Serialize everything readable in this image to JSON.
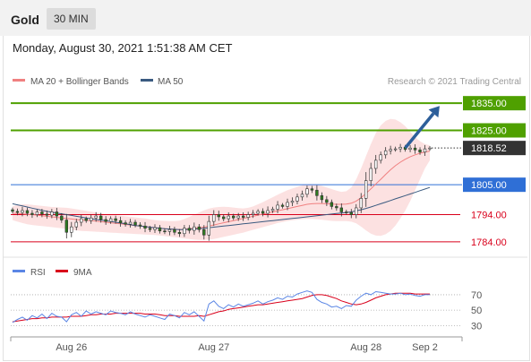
{
  "header": {
    "title": "Gold",
    "timeframe": "30 MIN"
  },
  "datetime": "Monday, August 30, 2021 1:51:38 AM CET",
  "colors": {
    "support": "#d9001b",
    "resistance": "#4fa000",
    "pivot": "#2f6fd6",
    "ma20": "#f08080",
    "ma50": "#3a5a80",
    "band": "#f9c9c9",
    "arrow": "#2d5f9a",
    "price_tag": "#333333",
    "rsi": "#5b86e5",
    "rsi_ma": "#d9001b",
    "candle_up": "#3c9a2e",
    "candle_down": "#2d7a1f"
  },
  "chart_data": [
    {
      "type": "candlestick",
      "legend": [
        {
          "name": "MA 20 + Bollinger Bands",
          "color": "#f08080"
        },
        {
          "name": "MA 50",
          "color": "#3a5a80"
        }
      ],
      "credit": "Research © 2021 Trading Central",
      "ylim": [
        1780,
        1840
      ],
      "x_ticks": [
        {
          "label": "Aug 26",
          "index": 12
        },
        {
          "label": "Aug 27",
          "index": 41
        },
        {
          "label": "Aug 28",
          "index": 72
        },
        {
          "label": "Sep 2",
          "index": 84
        }
      ],
      "levels": [
        {
          "label": "1835.00",
          "value": 1835.0,
          "kind": "resistance"
        },
        {
          "label": "1825.00",
          "value": 1825.0,
          "kind": "resistance"
        },
        {
          "label": "1805.00",
          "value": 1805.0,
          "kind": "pivot"
        },
        {
          "label": "1794.00",
          "value": 1794.0,
          "kind": "support"
        },
        {
          "label": "1784.00",
          "value": 1784.0,
          "kind": "support"
        }
      ],
      "last_price": {
        "label": "1818.52",
        "value": 1818.52
      },
      "arrow": {
        "from": [
          80,
          1818.52
        ],
        "to": [
          87,
          1834.0
        ]
      },
      "close": [
        1795.2,
        1794.8,
        1795.5,
        1794.5,
        1794.0,
        1795.0,
        1794.2,
        1793.8,
        1795.0,
        1793.5,
        1792.0,
        1787.5,
        1789.5,
        1791.2,
        1792.5,
        1791.8,
        1792.8,
        1793.5,
        1792.2,
        1791.5,
        1792.5,
        1791.8,
        1791.0,
        1790.5,
        1791.2,
        1790.2,
        1789.8,
        1789.0,
        1788.5,
        1789.2,
        1788.0,
        1787.8,
        1788.5,
        1787.5,
        1787.0,
        1789.0,
        1788.2,
        1789.5,
        1788.5,
        1786.5,
        1791.5,
        1794.0,
        1793.2,
        1792.5,
        1793.5,
        1792.8,
        1793.5,
        1793.0,
        1794.0,
        1794.5,
        1795.2,
        1794.5,
        1795.5,
        1796.0,
        1797.5,
        1797.0,
        1798.5,
        1799.0,
        1800.5,
        1801.5,
        1803.5,
        1803.0,
        1801.0,
        1799.5,
        1798.5,
        1797.0,
        1796.5,
        1795.0,
        1794.8,
        1794.0,
        1796.5,
        1800.0,
        1806.5,
        1811.0,
        1814.0,
        1816.0,
        1817.5,
        1818.0,
        1818.2,
        1818.8,
        1818.0,
        1818.5,
        1817.8,
        1817.0,
        1818.2,
        1818.52
      ],
      "ma20": [
        1794.5,
        1794.4,
        1794.3,
        1794.1,
        1794.0,
        1793.8,
        1793.6,
        1793.4,
        1793.2,
        1793.0,
        1792.8,
        1792.6,
        1792.4,
        1792.2,
        1792.0,
        1791.9,
        1791.8,
        1791.6,
        1791.4,
        1791.2,
        1791.0,
        1790.8,
        1790.6,
        1790.4,
        1790.2,
        1790.0,
        1789.8,
        1789.6,
        1789.4,
        1789.2,
        1789.0,
        1788.8,
        1788.7,
        1788.6,
        1788.5,
        1788.6,
        1788.8,
        1789.0,
        1789.2,
        1789.4,
        1789.8,
        1790.2,
        1790.6,
        1791.0,
        1791.4,
        1791.8,
        1792.2,
        1792.6,
        1793.0,
        1793.4,
        1793.8,
        1794.2,
        1794.6,
        1795.0,
        1795.4,
        1795.8,
        1796.2,
        1796.6,
        1797.0,
        1797.4,
        1797.8,
        1798.0,
        1798.1,
        1798.1,
        1798.0,
        1797.9,
        1797.8,
        1797.8,
        1797.9,
        1798.2,
        1799.0,
        1800.2,
        1801.8,
        1803.5,
        1805.3,
        1807.0,
        1808.8,
        1810.5,
        1812.0,
        1813.3,
        1814.4,
        1815.3,
        1816.0,
        1816.6,
        1817.0,
        1817.4
      ],
      "ma50": [
        1798.0,
        1797.6,
        1797.2,
        1796.8,
        1796.4,
        1796.0,
        1795.6,
        1795.2,
        1794.9,
        1794.6,
        1794.3,
        1794.0,
        1793.7,
        1793.4,
        1793.1,
        1792.8,
        1792.5,
        1792.2,
        1792.0,
        1791.8,
        1791.5,
        1791.2,
        1790.9,
        1790.6,
        1790.3,
        1790.0,
        1789.8,
        1789.6,
        1789.4,
        1789.2,
        1789.0,
        1788.8,
        1788.7,
        1788.6,
        1788.5,
        1788.5,
        1788.6,
        1788.7,
        1788.8,
        1789.0,
        1789.2,
        1789.4,
        1789.6,
        1789.8,
        1790.0,
        1790.2,
        1790.4,
        1790.6,
        1790.8,
        1791.0,
        1791.2,
        1791.4,
        1791.6,
        1791.8,
        1792.0,
        1792.2,
        1792.4,
        1792.6,
        1792.8,
        1793.0,
        1793.2,
        1793.4,
        1793.6,
        1793.8,
        1794.0,
        1794.2,
        1794.4,
        1794.6,
        1794.8,
        1795.0,
        1795.4,
        1795.8,
        1796.3,
        1796.8,
        1797.4,
        1798.0,
        1798.6,
        1799.2,
        1799.8,
        1800.4,
        1801.0,
        1801.6,
        1802.2,
        1802.8,
        1803.4,
        1804.0
      ],
      "band_upper": [
        1797.0,
        1797.5,
        1797.8,
        1797.8,
        1797.6,
        1797.4,
        1797.2,
        1797.0,
        1796.8,
        1796.7,
        1796.6,
        1796.5,
        1796.3,
        1796.0,
        1795.7,
        1795.4,
        1795.1,
        1794.8,
        1794.5,
        1794.2,
        1794.0,
        1793.8,
        1793.6,
        1793.4,
        1793.2,
        1793.0,
        1792.8,
        1792.6,
        1792.3,
        1792.0,
        1791.8,
        1791.7,
        1791.6,
        1791.6,
        1791.8,
        1792.4,
        1793.2,
        1794.0,
        1794.8,
        1795.6,
        1796.2,
        1796.6,
        1796.8,
        1796.9,
        1796.8,
        1796.6,
        1796.4,
        1796.3,
        1796.5,
        1797.0,
        1797.8,
        1798.6,
        1799.5,
        1800.4,
        1801.3,
        1802.2,
        1803.0,
        1803.6,
        1804.2,
        1804.8,
        1805.2,
        1805.2,
        1805.0,
        1804.6,
        1804.0,
        1803.4,
        1802.8,
        1802.4,
        1802.6,
        1804.0,
        1807.0,
        1811.0,
        1815.5,
        1820.0,
        1824.0,
        1826.8,
        1828.5,
        1829.2,
        1829.0,
        1828.0,
        1826.5,
        1824.5,
        1822.5,
        1821.0,
        1820.0,
        1819.5
      ],
      "band_lower": [
        1792.0,
        1791.4,
        1790.9,
        1790.5,
        1790.2,
        1790.0,
        1789.8,
        1789.6,
        1789.4,
        1789.2,
        1789.0,
        1788.7,
        1788.4,
        1788.2,
        1788.0,
        1787.9,
        1787.8,
        1787.7,
        1787.6,
        1787.5,
        1787.4,
        1787.3,
        1787.2,
        1787.1,
        1787.0,
        1786.9,
        1786.8,
        1786.7,
        1786.6,
        1786.5,
        1786.3,
        1786.1,
        1785.9,
        1785.7,
        1785.5,
        1785.2,
        1785.0,
        1784.8,
        1784.7,
        1784.7,
        1784.8,
        1785.0,
        1785.4,
        1785.8,
        1786.2,
        1786.6,
        1787.0,
        1787.4,
        1787.9,
        1788.4,
        1788.9,
        1789.4,
        1789.9,
        1790.4,
        1790.9,
        1791.3,
        1791.6,
        1791.9,
        1792.1,
        1792.3,
        1792.4,
        1792.4,
        1792.3,
        1792.1,
        1791.9,
        1791.7,
        1791.6,
        1791.6,
        1791.6,
        1791.4,
        1790.8,
        1789.6,
        1788.2,
        1787.0,
        1786.3,
        1786.2,
        1786.8,
        1788.0,
        1790.0,
        1792.6,
        1795.5,
        1799.0,
        1803.0,
        1807.0,
        1811.0,
        1814.0
      ]
    },
    {
      "type": "line",
      "legend": [
        {
          "name": "RSI",
          "color": "#5b86e5"
        },
        {
          "name": "9MA",
          "color": "#d9001b"
        }
      ],
      "ylim": [
        20,
        85
      ],
      "y_ticks": [
        {
          "label": "70",
          "value": 70
        },
        {
          "label": "50",
          "value": 50
        },
        {
          "label": "30",
          "value": 30
        }
      ],
      "series": [
        {
          "name": "RSI",
          "values": [
            34,
            38,
            41,
            37,
            43,
            40,
            45,
            39,
            46,
            42,
            41,
            35,
            44,
            47,
            42,
            49,
            45,
            48,
            46,
            44,
            49,
            47,
            46,
            44,
            48,
            45,
            43,
            41,
            44,
            42,
            40,
            38,
            45,
            43,
            40,
            47,
            44,
            48,
            42,
            36,
            58,
            62,
            55,
            52,
            57,
            54,
            58,
            55,
            57,
            59,
            62,
            58,
            61,
            63,
            66,
            64,
            68,
            67,
            71,
            73,
            75,
            73,
            64,
            60,
            58,
            54,
            55,
            52,
            56,
            55,
            63,
            68,
            72,
            70,
            74,
            73,
            72,
            71,
            71,
            72,
            70,
            71,
            69,
            68,
            70,
            70
          ]
        },
        {
          "name": "9MA",
          "values": [
            35,
            36,
            37,
            38,
            39,
            39,
            40,
            40,
            41,
            41,
            41,
            41,
            42,
            42,
            42,
            43,
            44,
            44,
            45,
            45,
            45,
            46,
            46,
            46,
            46,
            46,
            46,
            45,
            45,
            45,
            44,
            43,
            43,
            43,
            42,
            42,
            42,
            42,
            43,
            42,
            44,
            46,
            48,
            49,
            51,
            52,
            53,
            54,
            55,
            56,
            57,
            57,
            58,
            59,
            60,
            61,
            62,
            63,
            64,
            65,
            67,
            69,
            70,
            70,
            69,
            67,
            65,
            62,
            60,
            58,
            57,
            58,
            60,
            63,
            66,
            68,
            70,
            71,
            72,
            72,
            72,
            72,
            71,
            71,
            71,
            71
          ]
        }
      ]
    }
  ]
}
